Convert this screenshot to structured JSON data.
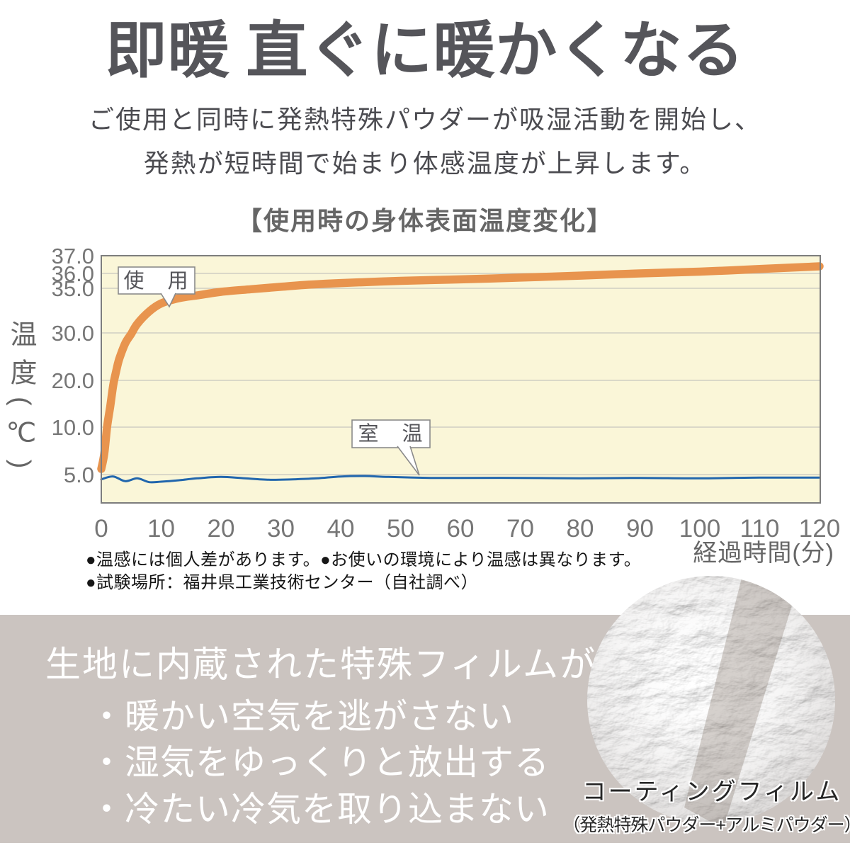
{
  "header": {
    "title": "即暖 直ぐに暖かくなる",
    "subtitle_lines": [
      "ご使用と同時に発熱特殊パウダーが吸湿活動を開始し、",
      "発熱が短時間で始まり体感温度が上昇します。"
    ]
  },
  "chart": {
    "title": "【使用時の身体表面温度変化】",
    "y_axis_title": "温度(℃)",
    "x_axis_title": "経過時間(分)",
    "use_label": "使　用",
    "room_label": "室　温",
    "colors": {
      "use_line": "#E8944E",
      "room_line": "#2166AD",
      "plot_bg": "#FAF6D8",
      "grid": "#C6C6BE",
      "border": "#7D7D7D"
    }
  },
  "chart_data": {
    "type": "line",
    "title": "使用時の身体表面温度変化",
    "xlabel": "経過時間(分)",
    "ylabel": "温度(℃)",
    "xlim": [
      0,
      120
    ],
    "x_ticks": [
      0,
      10,
      20,
      30,
      40,
      50,
      60,
      70,
      80,
      90,
      100,
      110,
      120
    ],
    "y_tick_labels": [
      "37.0",
      "36.0",
      "35.0",
      "30.0",
      "20.0",
      "10.0",
      "5.0"
    ],
    "y_tick_values": [
      37,
      36,
      35,
      30,
      20,
      10,
      5
    ],
    "y_scale_note": "non-linear axis: 35-37 range expanded, below 35 compressed",
    "grid": true,
    "legend_position": "inline-callouts",
    "series": [
      {
        "name": "使用",
        "color": "#E8944E",
        "x": [
          0,
          0.5,
          1,
          1.5,
          2,
          2.5,
          3,
          4,
          5,
          6,
          8,
          10,
          13,
          16,
          20,
          25,
          30,
          35,
          40,
          50,
          60,
          70,
          80,
          90,
          100,
          110,
          120
        ],
        "y": [
          5.6,
          7.2,
          10.3,
          14.5,
          19,
          22,
          24.5,
          27.8,
          29.8,
          31,
          32.4,
          33.3,
          33.9,
          34.2,
          34.6,
          34.9,
          35.1,
          35.25,
          35.35,
          35.5,
          35.6,
          35.72,
          35.85,
          36.0,
          36.1,
          36.25,
          36.4
        ]
      },
      {
        "name": "室温",
        "color": "#2166AD",
        "x": [
          0,
          2,
          4,
          6,
          8,
          10,
          13,
          16,
          20,
          24,
          28,
          32,
          36,
          40,
          44,
          48,
          55,
          60,
          70,
          80,
          90,
          100,
          110,
          120
        ],
        "y": [
          4.5,
          4.8,
          4.3,
          4.6,
          4.2,
          4.25,
          4.4,
          4.6,
          4.75,
          4.6,
          4.45,
          4.5,
          4.6,
          4.8,
          4.85,
          4.75,
          4.65,
          4.65,
          4.65,
          4.6,
          4.65,
          4.6,
          4.68,
          4.68
        ]
      }
    ]
  },
  "footnotes": [
    "●温感には個人差があります。●お使いの環境により温感は異なります。",
    "●試験場所：福井県工業技術センター（自社調べ）"
  ],
  "panel": {
    "heading": "生地に内蔵された特殊フィルムが",
    "bullets": [
      "・暖かい空気を逃がさない",
      "・湿気をゆっくりと放出する",
      "・冷たい冷気を取り込まない"
    ]
  },
  "film": {
    "caption_line1": "コーティングフィルム",
    "caption_line2": "（発熱特殊パウダー+アルミパウダー）"
  }
}
